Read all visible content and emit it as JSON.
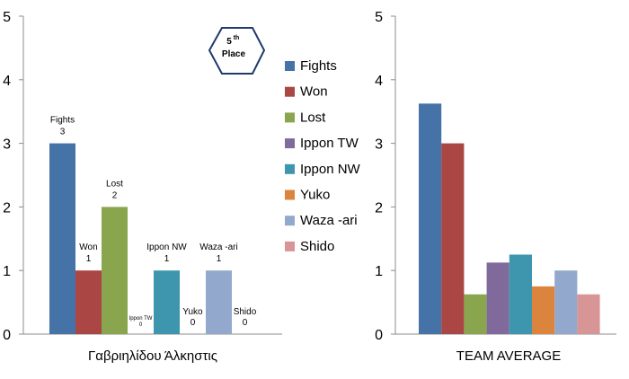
{
  "colors": {
    "Fights": "#4572a7",
    "Won": "#aa4643",
    "Lost": "#89a54e",
    "Ippon TW": "#80699b",
    "Ippon NW": "#3d96ae",
    "Yuko": "#db843d",
    "Waza -ari": "#92a8cd",
    "Shido": "#d79695"
  },
  "badge": {
    "superscript": "th",
    "number": "5",
    "text": "Place"
  },
  "legend": [
    "Fights",
    "Won",
    "Lost",
    "Ippon TW",
    "Ippon NW",
    "Yuko",
    "Waza -ari",
    "Shido"
  ],
  "chart_data": [
    {
      "type": "bar",
      "categories": [
        "Fights",
        "Won",
        "Lost",
        "Ippon TW",
        "Ippon NW",
        "Yuko",
        "Waza -ari",
        "Shido"
      ],
      "values": [
        3,
        1,
        2,
        0,
        1,
        0,
        1,
        0
      ],
      "xlabel": "Γαβριηλίδου Άλκηστις",
      "ylim": [
        0,
        5
      ],
      "yticks": [
        "0",
        "1",
        "2",
        "3",
        "4",
        "5"
      ],
      "data_labels": [
        {
          "name": "Fights",
          "value": "3"
        },
        {
          "name": "Won",
          "value": "1"
        },
        {
          "name": "Lost",
          "value": "2"
        },
        {
          "name": "Ippon TW",
          "value": "0"
        },
        {
          "name": "Ippon NW",
          "value": "1"
        },
        {
          "name": "Yuko",
          "value": "0"
        },
        {
          "name": "Waza -ari",
          "value": "1"
        },
        {
          "name": "Shido",
          "value": "0"
        }
      ]
    },
    {
      "type": "bar",
      "categories": [
        "Fights",
        "Won",
        "Lost",
        "Ippon TW",
        "Ippon NW",
        "Yuko",
        "Waza -ari",
        "Shido"
      ],
      "values": [
        3.625,
        3.0,
        0.625,
        1.125,
        1.25,
        0.75,
        1.0,
        0.625
      ],
      "xlabel": "TEAM AVERAGE",
      "ylim": [
        0,
        5
      ],
      "yticks": [
        "0",
        "1",
        "2",
        "3",
        "4",
        "5"
      ]
    }
  ]
}
